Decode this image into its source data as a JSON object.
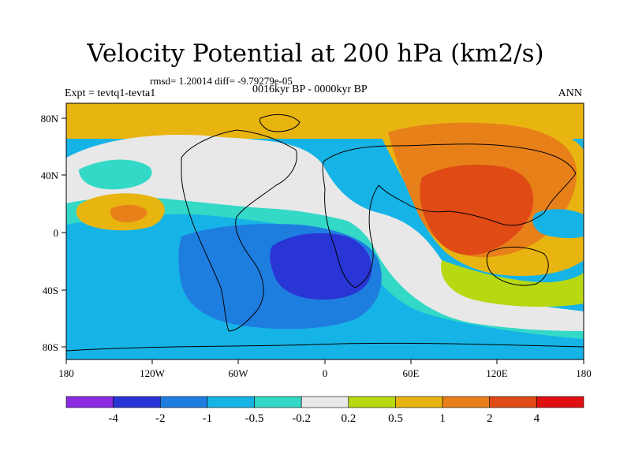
{
  "title": "Velocity Potential at 200 hPa (km2/s)",
  "stats": "rmsd= 1.20014  diff= -9.79279e-05",
  "experiment": "Expt = tevtq1-tevta1",
  "period": "0016kyr BP - 0000kyr BP",
  "season": "ANN",
  "axes": {
    "lon_labels": [
      "180",
      "120W",
      "60W",
      "0",
      "60E",
      "120E",
      "180"
    ],
    "lat_labels": [
      "80N",
      "40N",
      "0",
      "40S",
      "80S"
    ]
  },
  "legend": {
    "labels": [
      "-4",
      "-2",
      "-1",
      "-0.5",
      "-0.2",
      "0.2",
      "0.5",
      "1",
      "2",
      "4"
    ],
    "colors": [
      "#8b2be2",
      "#2a35d6",
      "#1e7ee0",
      "#16b4e6",
      "#34d8c6",
      "#e8e8e8",
      "#b8d812",
      "#e8b510",
      "#e8801a",
      "#e04a14",
      "#e01010"
    ]
  },
  "colors": {
    "background": "#ffffff",
    "coast": "#000000"
  }
}
